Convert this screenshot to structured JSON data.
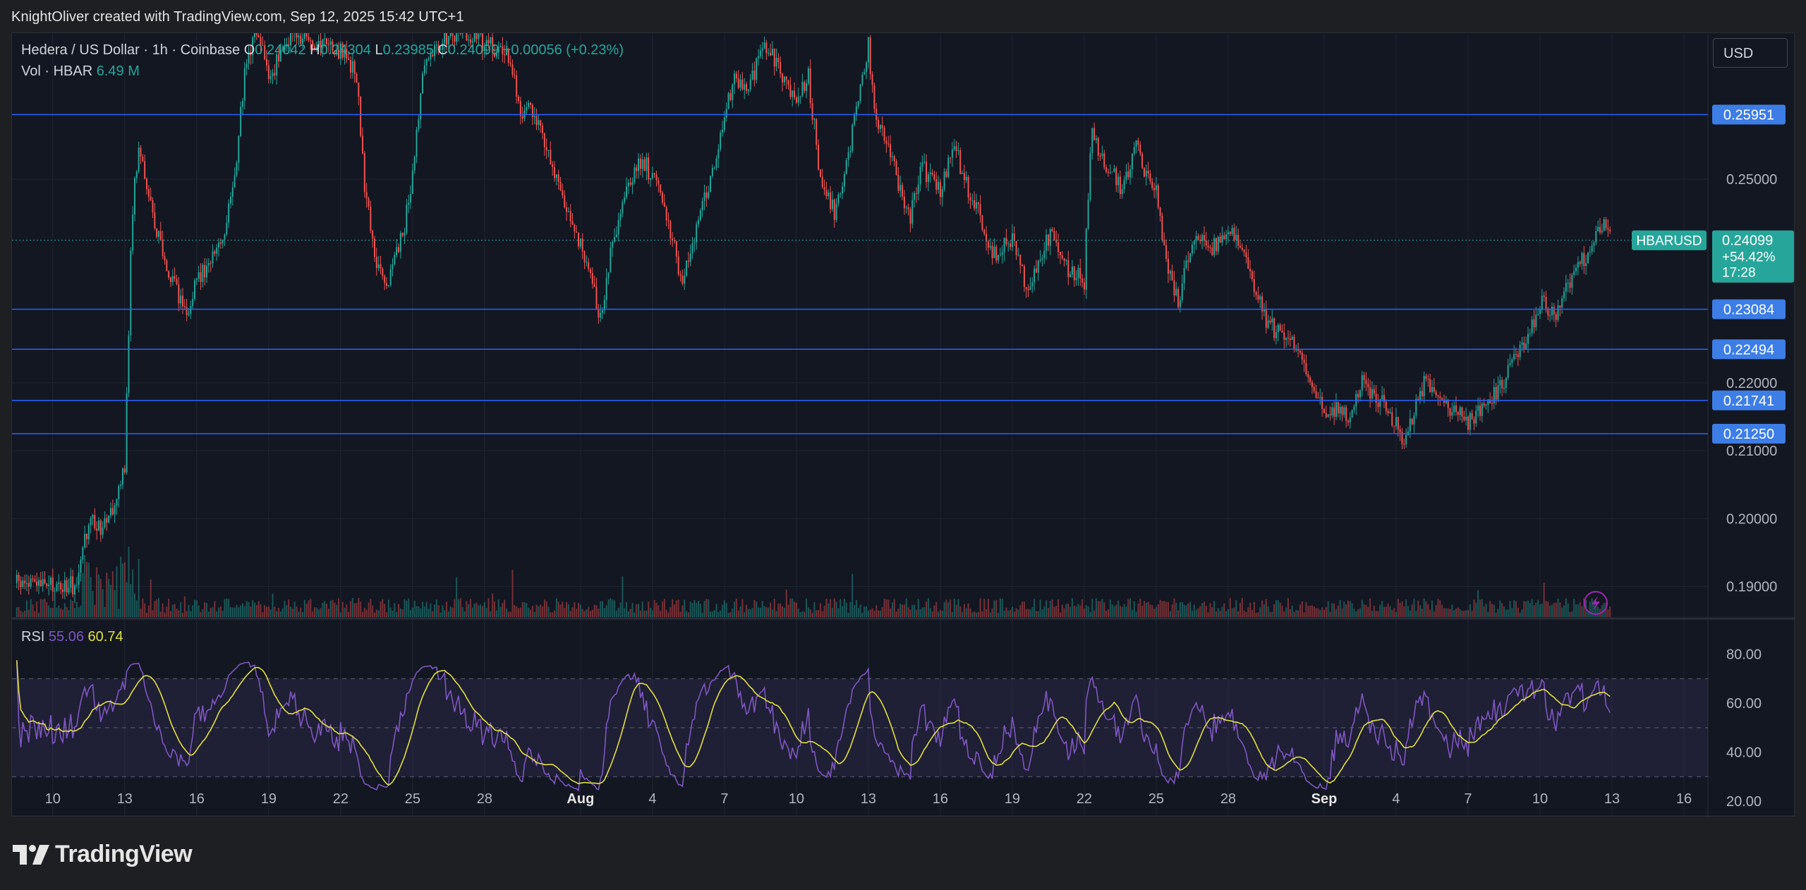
{
  "header": {
    "credit": "KnightOliver created with TradingView.com, Sep 12, 2025 15:42 UTC+1"
  },
  "legend": {
    "title": "Hedera / US Dollar · 1h · Coinbase",
    "o_label": "O",
    "o_value": "0.24042",
    "h_label": "H",
    "h_value": "0.24304",
    "l_label": "L",
    "l_value": "0.23985",
    "c_label": "C",
    "c_value": "0.24099",
    "change": "+0.00056 (+0.23%)",
    "vol_label": "Vol · HBAR",
    "vol_value": "6.49 M"
  },
  "rsi_legend": {
    "label": "RSI",
    "rsi_value": "55.06",
    "ma_value": "60.74"
  },
  "currency": "USD",
  "footer": {
    "brand": "TradingView"
  },
  "colors": {
    "up": "#26a69a",
    "down": "#ef5350",
    "hline": "#2962ff",
    "rsi": "#7e57c2",
    "rsi_ma": "#e0e040"
  },
  "chart_data": {
    "type": "candlestick",
    "symbol": "HBARUSD",
    "interval": "1h",
    "y_ticks": [
      "0.25000",
      "0.22000",
      "0.21000",
      "0.20000",
      "0.19000"
    ],
    "ylim": [
      0.1855,
      0.2715
    ],
    "x_ticks": [
      {
        "label": "10",
        "day": 10
      },
      {
        "label": "13",
        "day": 13
      },
      {
        "label": "16",
        "day": 16
      },
      {
        "label": "19",
        "day": 19
      },
      {
        "label": "22",
        "day": 22
      },
      {
        "label": "25",
        "day": 25
      },
      {
        "label": "28",
        "day": 28
      },
      {
        "label": "Aug",
        "day": 32
      },
      {
        "label": "4",
        "day": 35
      },
      {
        "label": "7",
        "day": 38
      },
      {
        "label": "10",
        "day": 41
      },
      {
        "label": "13",
        "day": 44
      },
      {
        "label": "16",
        "day": 47
      },
      {
        "label": "19",
        "day": 50
      },
      {
        "label": "22",
        "day": 53
      },
      {
        "label": "25",
        "day": 56
      },
      {
        "label": "28",
        "day": 59
      },
      {
        "label": "Sep",
        "day": 63
      },
      {
        "label": "4",
        "day": 66
      },
      {
        "label": "7",
        "day": 69
      },
      {
        "label": "10",
        "day": 72
      },
      {
        "label": "13",
        "day": 75
      },
      {
        "label": "16",
        "day": 78
      }
    ],
    "x_range_days": [
      8.3,
      79.0
    ],
    "horizontal_lines": [
      {
        "label": "0.25951",
        "value": 0.25951
      },
      {
        "label": "0.23084",
        "value": 0.23084
      },
      {
        "label": "0.22494",
        "value": 0.22494
      },
      {
        "label": "0.21741",
        "value": 0.21741
      },
      {
        "label": "0.21250",
        "value": 0.2125
      }
    ],
    "last_price": {
      "symbol": "HBARUSD",
      "value": "0.24099",
      "change": "+54.42%",
      "countdown": "17:28",
      "numeric": 0.24099
    },
    "price_path": [
      [
        9.0,
        0.1905
      ],
      [
        10.0,
        0.19
      ],
      [
        11.0,
        0.1902
      ],
      [
        11.5,
        0.2
      ],
      [
        12.0,
        0.199
      ],
      [
        12.5,
        0.201
      ],
      [
        13.0,
        0.207
      ],
      [
        13.3,
        0.245
      ],
      [
        13.6,
        0.255
      ],
      [
        14.0,
        0.248
      ],
      [
        14.5,
        0.24
      ],
      [
        15.0,
        0.235
      ],
      [
        15.6,
        0.23
      ],
      [
        16.0,
        0.235
      ],
      [
        17.0,
        0.24
      ],
      [
        17.5,
        0.248
      ],
      [
        18.0,
        0.265
      ],
      [
        18.5,
        0.272
      ],
      [
        19.0,
        0.265
      ],
      [
        19.5,
        0.268
      ],
      [
        20.0,
        0.272
      ],
      [
        21.0,
        0.27
      ],
      [
        22.0,
        0.269
      ],
      [
        22.7,
        0.265
      ],
      [
        23.0,
        0.248
      ],
      [
        23.5,
        0.238
      ],
      [
        24.0,
        0.235
      ],
      [
        24.6,
        0.242
      ],
      [
        25.0,
        0.25
      ],
      [
        25.4,
        0.265
      ],
      [
        26.0,
        0.27
      ],
      [
        27.0,
        0.272
      ],
      [
        28.0,
        0.27
      ],
      [
        29.0,
        0.268
      ],
      [
        29.5,
        0.26
      ],
      [
        30.0,
        0.26
      ],
      [
        30.5,
        0.255
      ],
      [
        31.0,
        0.25
      ],
      [
        31.5,
        0.245
      ],
      [
        32.0,
        0.24
      ],
      [
        32.5,
        0.235
      ],
      [
        32.8,
        0.229
      ],
      [
        33.2,
        0.238
      ],
      [
        33.6,
        0.245
      ],
      [
        34.0,
        0.25
      ],
      [
        34.6,
        0.253
      ],
      [
        35.0,
        0.25
      ],
      [
        35.6,
        0.245
      ],
      [
        36.2,
        0.235
      ],
      [
        37.0,
        0.245
      ],
      [
        37.6,
        0.252
      ],
      [
        38.0,
        0.26
      ],
      [
        38.5,
        0.265
      ],
      [
        39.0,
        0.262
      ],
      [
        39.5,
        0.27
      ],
      [
        40.0,
        0.268
      ],
      [
        41.0,
        0.262
      ],
      [
        41.5,
        0.265
      ],
      [
        42.0,
        0.25
      ],
      [
        42.6,
        0.245
      ],
      [
        43.0,
        0.25
      ],
      [
        43.5,
        0.26
      ],
      [
        44.0,
        0.27
      ],
      [
        44.3,
        0.258
      ],
      [
        44.8,
        0.255
      ],
      [
        45.2,
        0.25
      ],
      [
        45.7,
        0.244
      ],
      [
        46.2,
        0.252
      ],
      [
        47.0,
        0.248
      ],
      [
        47.6,
        0.255
      ],
      [
        48.0,
        0.25
      ],
      [
        48.6,
        0.245
      ],
      [
        49.2,
        0.239
      ],
      [
        50.0,
        0.241
      ],
      [
        50.6,
        0.234
      ],
      [
        51.0,
        0.237
      ],
      [
        51.6,
        0.242
      ],
      [
        52.0,
        0.238
      ],
      [
        52.6,
        0.236
      ],
      [
        53.0,
        0.235
      ],
      [
        53.3,
        0.258
      ],
      [
        53.7,
        0.253
      ],
      [
        54.0,
        0.252
      ],
      [
        54.6,
        0.248
      ],
      [
        55.2,
        0.255
      ],
      [
        55.6,
        0.25
      ],
      [
        56.0,
        0.248
      ],
      [
        56.4,
        0.238
      ],
      [
        56.9,
        0.232
      ],
      [
        57.3,
        0.238
      ],
      [
        57.8,
        0.242
      ],
      [
        58.4,
        0.24
      ],
      [
        59.0,
        0.243
      ],
      [
        59.6,
        0.24
      ],
      [
        60.0,
        0.235
      ],
      [
        60.6,
        0.229
      ],
      [
        61.2,
        0.227
      ],
      [
        61.8,
        0.226
      ],
      [
        62.3,
        0.222
      ],
      [
        62.8,
        0.218
      ],
      [
        63.2,
        0.214
      ],
      [
        63.6,
        0.217
      ],
      [
        64.0,
        0.215
      ],
      [
        64.6,
        0.22
      ],
      [
        65.2,
        0.218
      ],
      [
        65.8,
        0.215
      ],
      [
        66.3,
        0.212
      ],
      [
        66.8,
        0.216
      ],
      [
        67.2,
        0.22
      ],
      [
        67.8,
        0.218
      ],
      [
        68.2,
        0.216
      ],
      [
        68.7,
        0.215
      ],
      [
        69.0,
        0.214
      ],
      [
        69.6,
        0.217
      ],
      [
        70.1,
        0.218
      ],
      [
        70.6,
        0.221
      ],
      [
        71.2,
        0.225
      ],
      [
        71.7,
        0.229
      ],
      [
        72.0,
        0.232
      ],
      [
        72.6,
        0.23
      ],
      [
        73.2,
        0.235
      ],
      [
        73.8,
        0.238
      ],
      [
        74.3,
        0.242
      ],
      [
        74.7,
        0.244
      ],
      [
        75.0,
        0.241
      ]
    ],
    "rsi": {
      "ylim": [
        14,
        94
      ],
      "y_ticks": [
        80,
        60,
        40,
        20
      ],
      "band": [
        30,
        70
      ],
      "mid": 50,
      "last": 55.06,
      "ma_last": 60.74
    }
  }
}
